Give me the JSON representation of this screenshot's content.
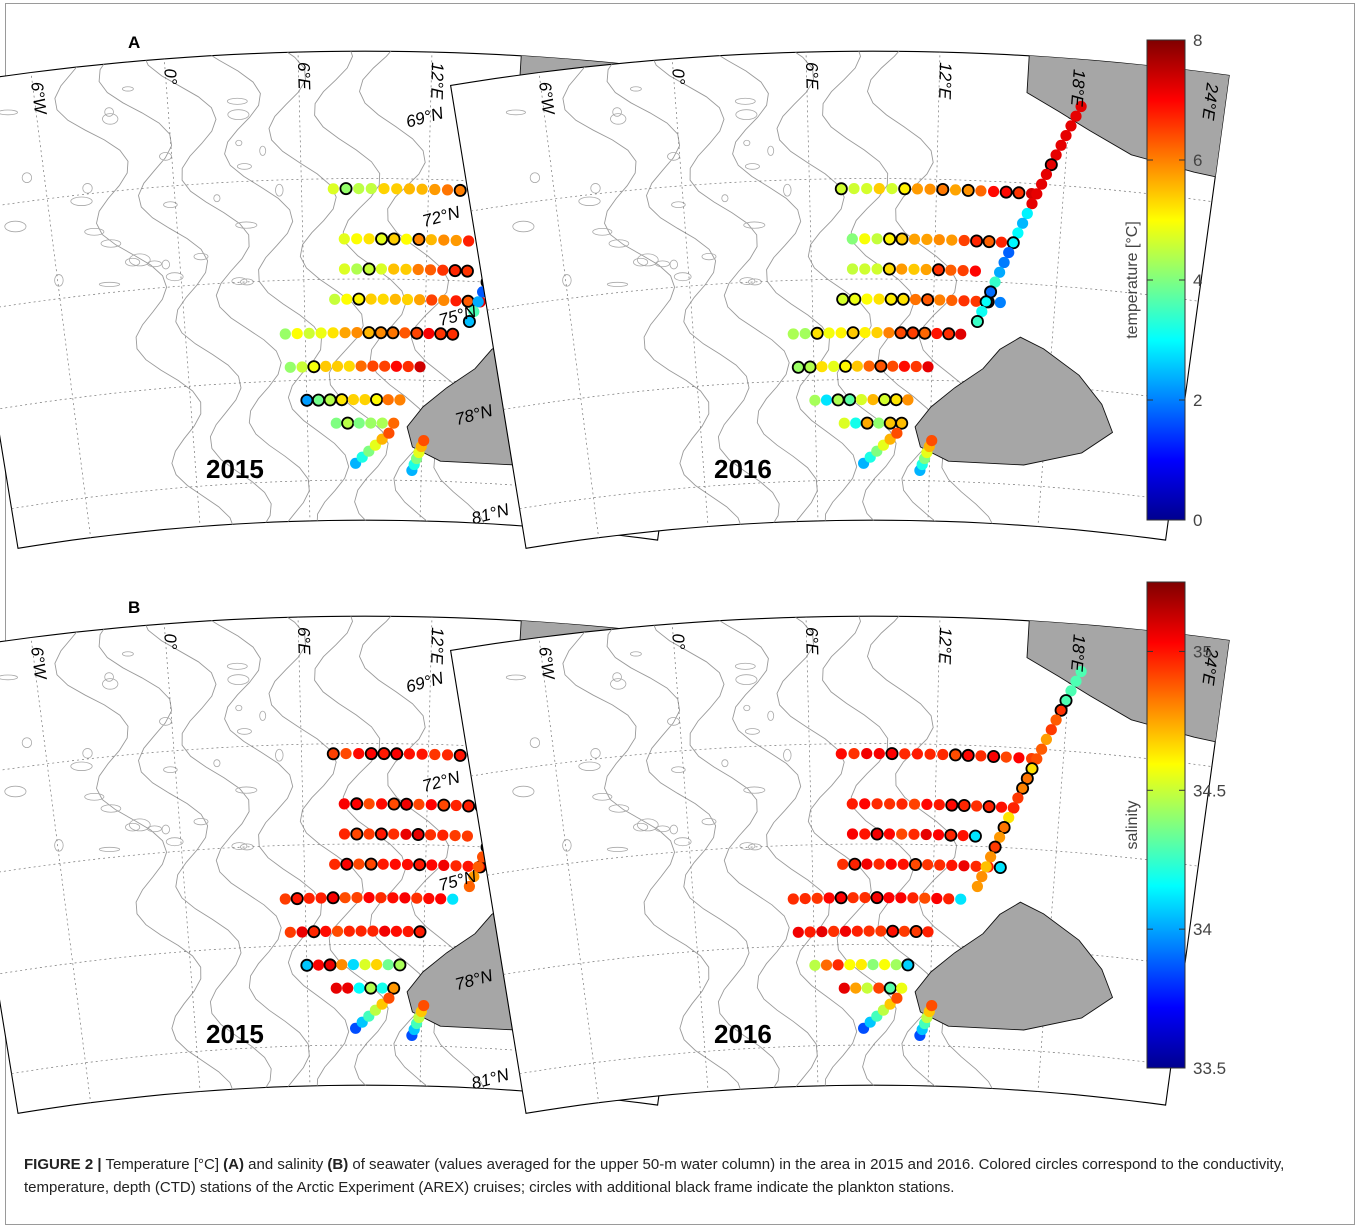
{
  "figure": {
    "panels": [
      {
        "letter": "A",
        "variable": "temperature",
        "maps": [
          {
            "year": "2015",
            "zone": "warm-t15"
          },
          {
            "year": "2016",
            "zone": "warm-t16"
          }
        ],
        "colorbar": {
          "label": "temperature [°C]",
          "min": 0,
          "max": 8,
          "ticks": [
            "0",
            "2",
            "4",
            "6",
            "8"
          ],
          "tick_values": [
            0,
            2,
            4,
            6,
            8
          ]
        }
      },
      {
        "letter": "B",
        "variable": "salinity",
        "maps": [
          {
            "year": "2015",
            "zone": "salt-15"
          },
          {
            "year": "2016",
            "zone": "salt-16"
          }
        ],
        "colorbar": {
          "label": "salinity",
          "min": 33.5,
          "max": 35.25,
          "ticks": [
            "33.5",
            "34",
            "34.5",
            "35"
          ],
          "tick_values": [
            33.5,
            34,
            34.5,
            35
          ]
        }
      }
    ],
    "lat_labels": [
      "81°N",
      "78°N",
      "75°N",
      "72°N",
      "69°N"
    ],
    "lon_labels": [
      "6°W",
      "0°",
      "6°E",
      "12°E",
      "18°E",
      "24°E"
    ],
    "colormap": [
      "#00008f",
      "#0000ff",
      "#0080ff",
      "#00ffff",
      "#80ff80",
      "#ffff00",
      "#ff8000",
      "#ff0000",
      "#800000"
    ],
    "land_color": "#a6a6a6"
  },
  "caption": {
    "label": "FIGURE 2 |",
    "text_1": " Temperature [°C] ",
    "ref_a": "(A)",
    "text_2": " and salinity ",
    "ref_b": "(B)",
    "text_3": " of seawater (values averaged for the upper 50-m water column) in the area in 2015 and 2016. Colored circles correspond to the conductivity, temperature, depth (CTD) stations of the Arctic Experiment (AREX) cruises; circles with additional black frame indicate the plankton stations."
  }
}
